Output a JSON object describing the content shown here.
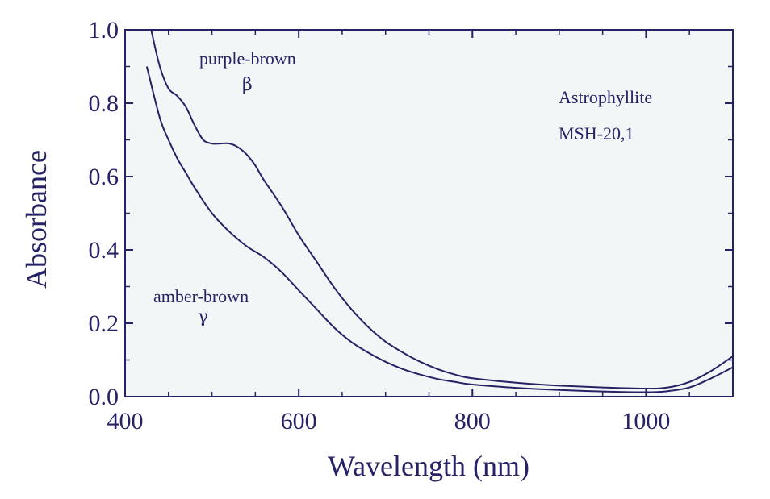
{
  "chart_data": {
    "type": "line",
    "title": "",
    "xlabel": "Wavelength (nm)",
    "ylabel": "Absorbance",
    "xlim": [
      400,
      1100
    ],
    "ylim": [
      0,
      1.0
    ],
    "xticks": [
      400,
      600,
      800,
      1000
    ],
    "xtick_labels": [
      "400",
      "600",
      "800",
      "1000"
    ],
    "yticks": [
      0,
      0.2,
      0.4,
      0.6,
      0.8,
      1.0
    ],
    "ytick_labels": [
      "0.0",
      "0.2",
      "0.4",
      "0.6",
      "0.8",
      "1.0"
    ],
    "grid": false,
    "series": [
      {
        "name": "purple-brown",
        "polarization": "β",
        "x": [
          430,
          440,
          450,
          460,
          470,
          480,
          490,
          500,
          510,
          520,
          530,
          540,
          550,
          560,
          580,
          600,
          620,
          640,
          660,
          680,
          700,
          720,
          740,
          760,
          780,
          800,
          850,
          900,
          950,
          1000,
          1025,
          1050,
          1075,
          1100
        ],
        "values": [
          1.0,
          0.9,
          0.84,
          0.82,
          0.79,
          0.74,
          0.7,
          0.69,
          0.69,
          0.69,
          0.68,
          0.66,
          0.63,
          0.59,
          0.52,
          0.44,
          0.37,
          0.3,
          0.24,
          0.19,
          0.15,
          0.12,
          0.095,
          0.075,
          0.06,
          0.05,
          0.038,
          0.03,
          0.025,
          0.022,
          0.025,
          0.04,
          0.07,
          0.11
        ]
      },
      {
        "name": "amber-brown",
        "polarization": "γ",
        "x": [
          425,
          440,
          450,
          460,
          470,
          480,
          500,
          520,
          540,
          560,
          580,
          600,
          620,
          640,
          660,
          680,
          700,
          720,
          740,
          760,
          780,
          800,
          850,
          900,
          950,
          1000,
          1025,
          1050,
          1075,
          1100
        ],
        "values": [
          0.9,
          0.76,
          0.7,
          0.65,
          0.61,
          0.57,
          0.5,
          0.45,
          0.41,
          0.38,
          0.34,
          0.29,
          0.24,
          0.19,
          0.15,
          0.12,
          0.095,
          0.075,
          0.06,
          0.048,
          0.04,
          0.033,
          0.024,
          0.018,
          0.014,
          0.012,
          0.015,
          0.025,
          0.05,
          0.08
        ]
      }
    ],
    "annotations": {
      "sample_name": "Astrophyllite",
      "sample_id": "MSH-20,1"
    }
  }
}
